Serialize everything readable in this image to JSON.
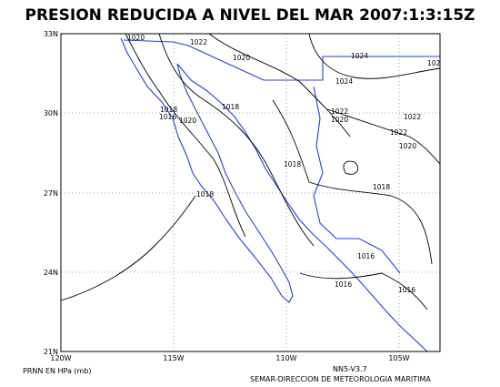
{
  "title": "PRESION REDUCIDA A NIVEL DEL MAR 2007:1:3:15Z",
  "lat_labels": [
    "33N",
    "30N",
    "27N",
    "24N",
    "21N"
  ],
  "lon_labels": [
    "120W",
    "115W",
    "110W",
    "105W"
  ],
  "contour_labels": [
    "1020",
    "1022",
    "1020",
    "1024",
    "102",
    "1024",
    "1018",
    "1016",
    "1020",
    "1018",
    "1022",
    "1020",
    "1022",
    "1022",
    "1020",
    "1018",
    "1018",
    "1018",
    "1016",
    "1016",
    "1016"
  ],
  "footer": {
    "units": "PRNN EN HPa (mb)",
    "version": "NN5-V3.7",
    "agency": "SEMAR-DIRECCION DE METEOROLOGIA MARITIMA"
  }
}
